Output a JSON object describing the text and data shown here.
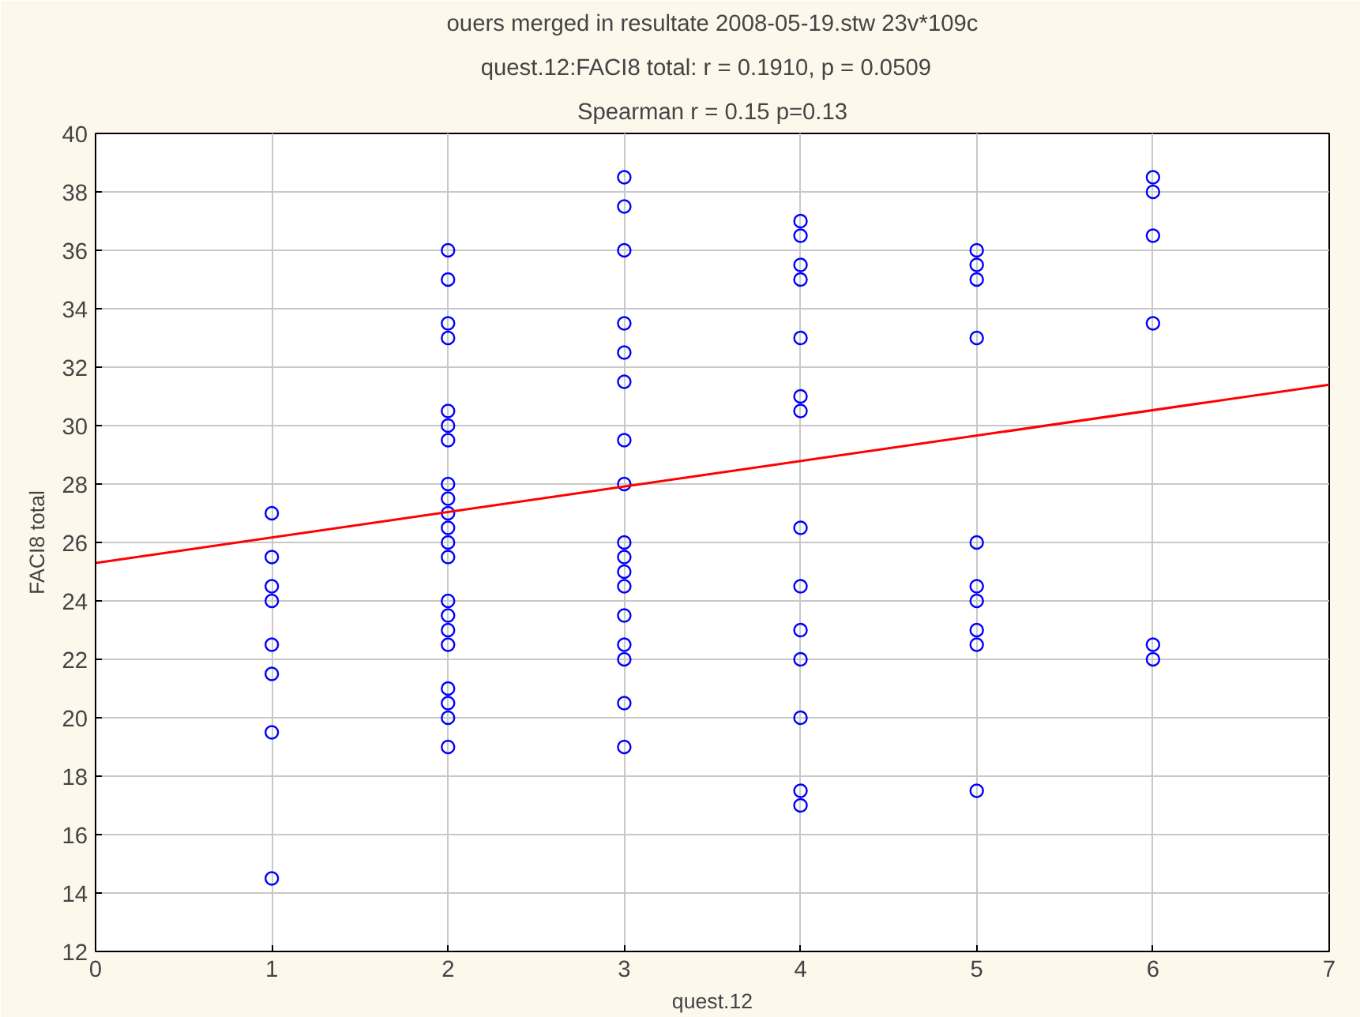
{
  "chart_data": {
    "type": "scatter",
    "title": "ouers merged in resultate 2008-05-19.stw 23v*109c",
    "subtitle": "quest.12:FACI8 total:   r = 0.1910, p = 0.0509",
    "annotations": [
      "Spearman r = 0.15 p=0.13"
    ],
    "xlabel": "quest.12",
    "ylabel": "FACI8 total",
    "xlim": [
      0,
      7
    ],
    "xticks": [
      0,
      1,
      2,
      3,
      4,
      5,
      6,
      7
    ],
    "ylim": [
      12,
      40
    ],
    "yticks": [
      12,
      14,
      16,
      18,
      20,
      22,
      24,
      26,
      28,
      30,
      32,
      34,
      36,
      38,
      40
    ],
    "grid": true,
    "series": [
      {
        "marker": "circle",
        "color": "#0000ff",
        "x": [
          1,
          1,
          1,
          1,
          1,
          1,
          1,
          1,
          2,
          2,
          2,
          2,
          2,
          2,
          2,
          2,
          2,
          2,
          2,
          2,
          2,
          2,
          2,
          2,
          2,
          2,
          2,
          2,
          2,
          3,
          3,
          3,
          3,
          3,
          3,
          3,
          3,
          3,
          3,
          3,
          3,
          3,
          3,
          3,
          3,
          3,
          4,
          4,
          4,
          4,
          4,
          4,
          4,
          4,
          4,
          4,
          4,
          4,
          4,
          4,
          5,
          5,
          5,
          5,
          5,
          5,
          5,
          5,
          5,
          5,
          6,
          6,
          6,
          6,
          6,
          6
        ],
        "values": [
          27,
          25.5,
          24.5,
          24,
          22.5,
          21.5,
          19.5,
          14.5,
          36,
          35,
          33.5,
          33,
          30.5,
          30,
          29.5,
          28,
          27.5,
          27,
          26.5,
          26,
          25.5,
          24,
          23.5,
          23,
          22.5,
          21,
          20.5,
          20,
          19,
          38.5,
          37.5,
          36,
          33.5,
          32.5,
          31.5,
          29.5,
          28,
          26,
          25.5,
          25,
          24.5,
          23.5,
          22.5,
          22,
          20.5,
          19,
          37,
          36.5,
          35.5,
          35,
          33,
          31,
          30.5,
          26.5,
          24.5,
          23,
          22,
          20,
          17.5,
          17,
          36,
          35.5,
          35,
          33,
          26,
          24.5,
          24,
          23,
          22.5,
          17.5,
          38.5,
          38,
          36.5,
          33.5,
          22.5,
          22
        ]
      },
      {
        "type": "line",
        "color": "#ff0000",
        "x": [
          0,
          7
        ],
        "values": [
          25.3,
          31.4
        ]
      }
    ]
  }
}
